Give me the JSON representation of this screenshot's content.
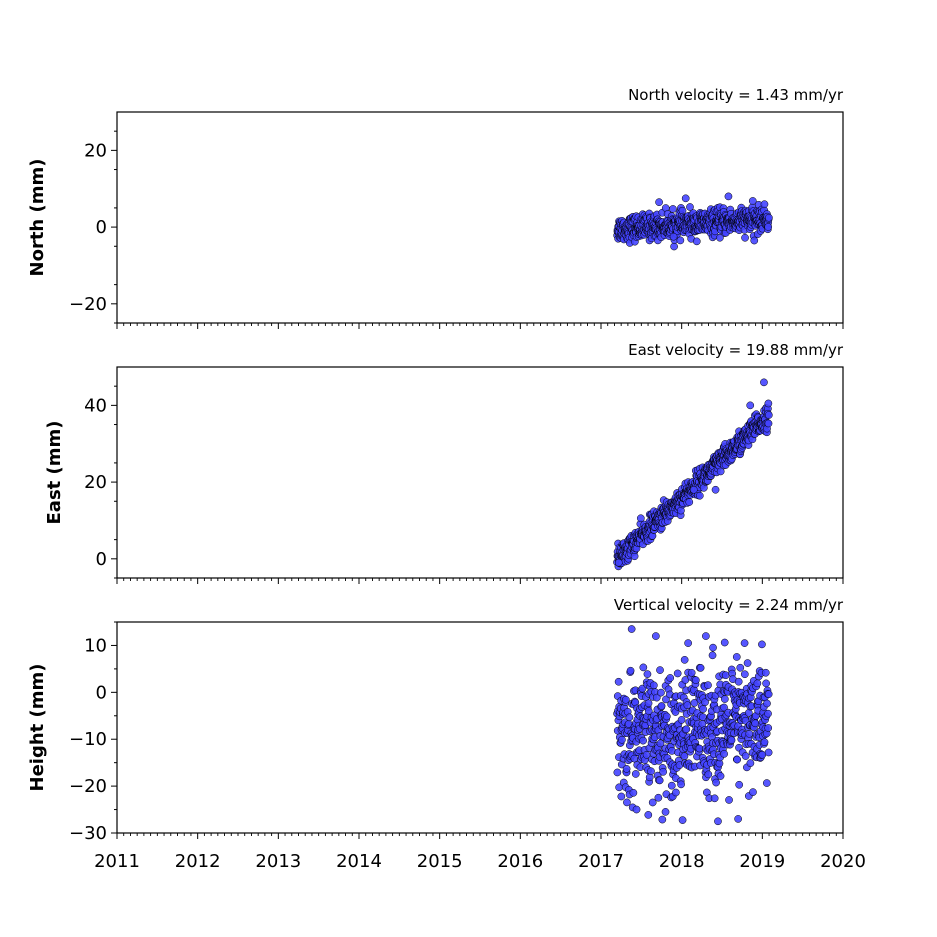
{
  "chart_data": [
    {
      "type": "scatter",
      "title": "North velocity = 1.43 mm/yr",
      "ylabel": "North (mm)",
      "xlim": [
        2011,
        2020
      ],
      "ylim": [
        -25,
        30
      ],
      "yticks": [
        -20,
        0,
        20
      ],
      "ytick_labels": [
        "−20",
        "0",
        "20"
      ],
      "xticks": [
        2011,
        2012,
        2013,
        2014,
        2015,
        2016,
        2017,
        2018,
        2019,
        2020
      ],
      "show_xtick_labels": false,
      "marker_color": "#4444ff",
      "marker_edge": "#000000",
      "series": [
        {
          "x_range": [
            2017.2,
            2019.08
          ],
          "trend": {
            "start": -0.5,
            "slope": 1.43
          },
          "noise_sd": 1.6,
          "anchors": [
            {
              "x": 2018.58,
              "y": 8
            },
            {
              "x": 2018.05,
              "y": 7.5
            },
            {
              "x": 2017.72,
              "y": 6.5
            },
            {
              "x": 2017.9,
              "y": -2.5
            },
            {
              "x": 2018.9,
              "y": -3.5
            }
          ]
        }
      ]
    },
    {
      "type": "scatter",
      "title": "East velocity = 19.88 mm/yr",
      "ylabel": "East (mm)",
      "xlim": [
        2011,
        2020
      ],
      "ylim": [
        -5,
        50
      ],
      "yticks": [
        0,
        20,
        40
      ],
      "ytick_labels": [
        "0",
        "20",
        "40"
      ],
      "xticks": [
        2011,
        2012,
        2013,
        2014,
        2015,
        2016,
        2017,
        2018,
        2019,
        2020
      ],
      "show_xtick_labels": false,
      "marker_color": "#4444ff",
      "marker_edge": "#000000",
      "series": [
        {
          "x_range": [
            2017.2,
            2019.08
          ],
          "trend": {
            "start": 0,
            "slope": 19.88
          },
          "noise_sd": 1.5,
          "anchors": [
            {
              "x": 2019.02,
              "y": 46
            },
            {
              "x": 2018.85,
              "y": 40
            },
            {
              "x": 2017.22,
              "y": -1
            },
            {
              "x": 2018.15,
              "y": 18
            },
            {
              "x": 2018.42,
              "y": 18
            }
          ]
        }
      ]
    },
    {
      "type": "scatter",
      "title": "Vertical velocity = 2.24 mm/yr",
      "ylabel": "Height (mm)",
      "xlim": [
        2011,
        2020
      ],
      "ylim": [
        -30,
        15
      ],
      "yticks": [
        -30,
        -20,
        -10,
        0,
        10
      ],
      "ytick_labels": [
        "−30",
        "−20",
        "−10",
        "0",
        "10"
      ],
      "xticks": [
        2011,
        2012,
        2013,
        2014,
        2015,
        2016,
        2017,
        2018,
        2019,
        2020
      ],
      "xtick_labels": [
        "2011",
        "2012",
        "2013",
        "2014",
        "2015",
        "2016",
        "2017",
        "2018",
        "2019",
        "2020"
      ],
      "show_xtick_labels": true,
      "marker_color": "#4444ff",
      "marker_edge": "#000000",
      "series": [
        {
          "x_range": [
            2017.2,
            2019.08
          ],
          "trend": {
            "start": -10,
            "slope": 2.24
          },
          "noise_sd": 6.5,
          "anchors": [
            {
              "x": 2017.38,
              "y": 13.5
            },
            {
              "x": 2017.68,
              "y": 12
            },
            {
              "x": 2018.3,
              "y": 12
            },
            {
              "x": 2018.08,
              "y": 10.5
            },
            {
              "x": 2018.78,
              "y": 10.5
            },
            {
              "x": 2018.45,
              "y": -27.5
            },
            {
              "x": 2018.7,
              "y": -27
            },
            {
              "x": 2017.8,
              "y": -25.5
            }
          ]
        }
      ]
    }
  ]
}
